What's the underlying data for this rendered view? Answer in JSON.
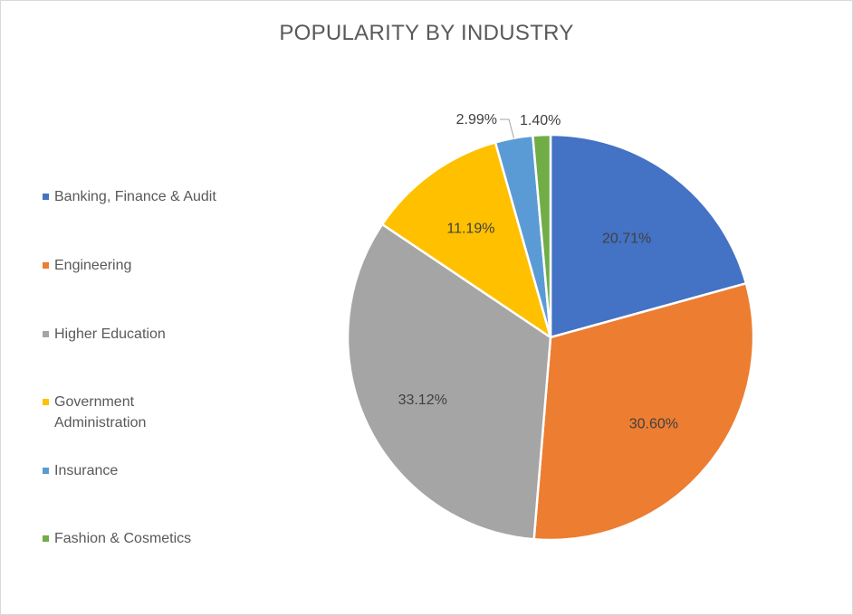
{
  "chart_data": {
    "type": "pie",
    "title": "POPULARITY BY INDUSTRY",
    "categories": [
      "Banking, Finance & Audit",
      "Engineering",
      "Higher Education",
      "Government Administration",
      "Insurance",
      "Fashion & Cosmetics"
    ],
    "values": [
      20.71,
      30.6,
      33.12,
      11.19,
      2.99,
      1.4
    ],
    "data_labels": [
      "20.71%",
      "30.60%",
      "33.12%",
      "11.19%",
      "2.99%",
      "1.40%"
    ],
    "colors": [
      "#4472C4",
      "#ED7D31",
      "#A5A5A5",
      "#FFC000",
      "#5B9BD5",
      "#70AD47"
    ],
    "legend_position": "left"
  }
}
